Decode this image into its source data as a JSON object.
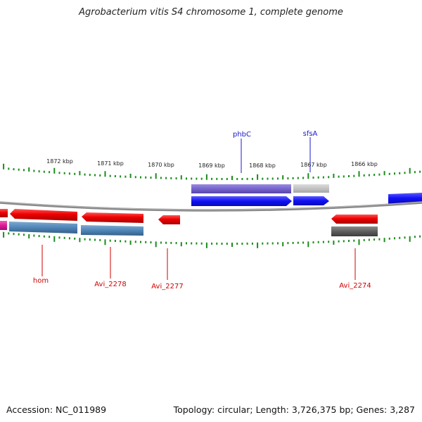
{
  "title": "Agrobacterium vitis S4 chromosome 1, complete genome",
  "footer": {
    "accession": "Accession: NC_011989",
    "stats": "Topology: circular; Length: 3,726,375 bp; Genes: 3,287"
  },
  "ruler": {
    "labels": [
      "1872 kbp",
      "1871 kbp",
      "1870 kbp",
      "1869 kbp",
      "1868 kbp",
      "1867 kbp",
      "1866 kbp"
    ],
    "tick_color": "#1a8c1a"
  },
  "colors": {
    "forward_gene": "#1a1aff",
    "forward_cds": "#7d6bd1",
    "forward_grey": "#c4c4c4",
    "reverse_gene": "#ee0000",
    "reverse_cds": "#4f86b8",
    "reverse_grey": "#606060",
    "magenta": "#e0199a",
    "backbone": "#8a8a8a",
    "forward_label": "#1a1acc",
    "reverse_label": "#d00000"
  },
  "labels": {
    "forward": [
      {
        "id": "phbC",
        "text": "phbC"
      },
      {
        "id": "sfsA",
        "text": "sfsA"
      }
    ],
    "reverse": [
      {
        "id": "hom",
        "text": "hom"
      },
      {
        "id": "Avi_2278",
        "text": "Avi_2278"
      },
      {
        "id": "Avi_2277",
        "text": "Avi_2277"
      },
      {
        "id": "Avi_2274",
        "text": "Avi_2274"
      }
    ]
  }
}
